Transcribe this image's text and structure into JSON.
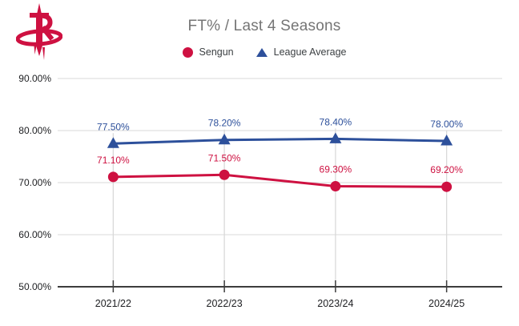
{
  "logo": {
    "team": "Houston Rockets",
    "color": "#CE1141"
  },
  "chart_data": {
    "type": "line",
    "title": "FT% / Last 4 Seasons",
    "categories": [
      "2021/22",
      "2022/23",
      "2023/24",
      "2024/25"
    ],
    "series": [
      {
        "name": "Sengun",
        "color": "#CE1141",
        "marker": "circle",
        "values": [
          71.1,
          71.5,
          69.3,
          69.2
        ],
        "labels": [
          "71.10%",
          "71.50%",
          "69.30%",
          "69.20%"
        ]
      },
      {
        "name": "League Average",
        "color": "#2D509B",
        "marker": "triangle",
        "values": [
          77.5,
          78.2,
          78.4,
          78.0
        ],
        "labels": [
          "77.50%",
          "78.20%",
          "78.40%",
          "78.00%"
        ]
      }
    ],
    "y_axis": {
      "min": 50,
      "max": 90,
      "tick_step": 10,
      "ticks": [
        {
          "value": 90,
          "label": "90.00%"
        },
        {
          "value": 80,
          "label": "80.00%"
        },
        {
          "value": 70,
          "label": "70.00%"
        },
        {
          "value": 60,
          "label": "60.00%"
        },
        {
          "value": 50,
          "label": "50.00%"
        }
      ]
    },
    "xlabel": "",
    "ylabel": "",
    "grid": true,
    "legend_position": "top"
  },
  "colors": {
    "sengun_red": "#CE1141",
    "league_blue": "#2D509B",
    "title_gray": "#757575",
    "axis_text": "#202124",
    "gridline": "#D9D9D9",
    "axis_line": "#3D3D3D",
    "background": "#FFFFFF"
  }
}
